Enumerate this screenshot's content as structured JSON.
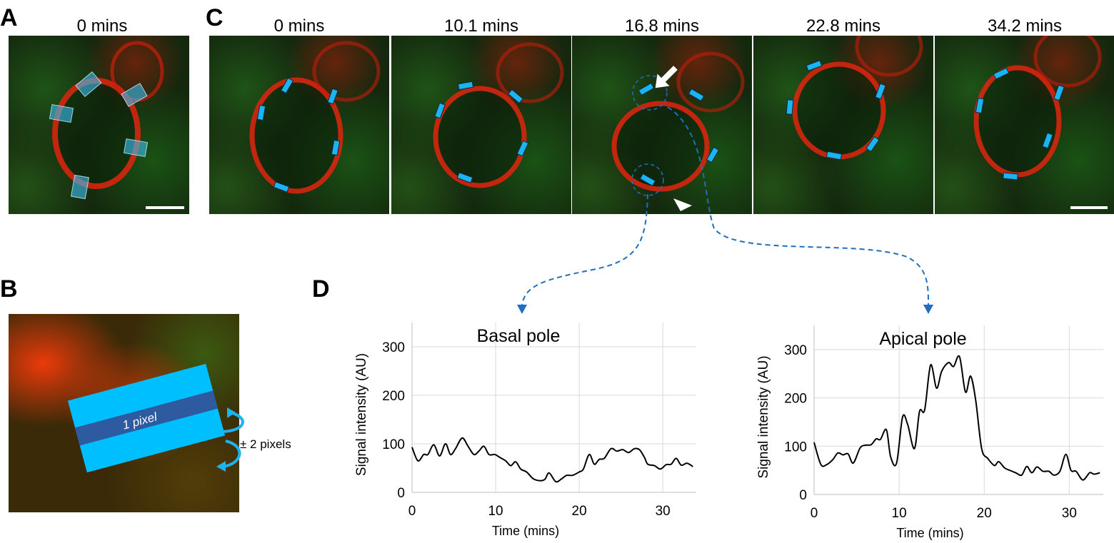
{
  "panel_labels": {
    "a": "A",
    "b": "B",
    "c": "C",
    "d": "D"
  },
  "panel_a": {
    "time": "0 mins"
  },
  "panel_b": {
    "band_label": "1 pixel",
    "width_label": "± 2 pixels"
  },
  "panel_c": {
    "times": [
      "0 mins",
      "10.1 mins",
      "16.8 mins",
      "22.8 mins",
      "34.2 mins"
    ]
  },
  "colors": {
    "roi": "#1cb4f0",
    "roi_dark": "#2e5aa0",
    "trace": "#000000",
    "grid": "#d9d9d9",
    "connector": "#1f6fc0",
    "membrane": "#e0240e"
  },
  "chart_data": [
    {
      "type": "line",
      "title": "Basal pole",
      "xlabel": "Time (mins)",
      "ylabel": "Signal intensity (AU)",
      "xlim": [
        0,
        34
      ],
      "ylim": [
        0,
        350
      ],
      "xticks": [
        "0",
        "10",
        "20",
        "30"
      ],
      "yticks": [
        "0",
        "100",
        "200",
        "300"
      ],
      "grid": true,
      "x": [
        0,
        0.7,
        1.4,
        1.9,
        2.6,
        3.3,
        4,
        4.6,
        5.2,
        6,
        6.7,
        7.4,
        8,
        8.6,
        9.2,
        9.9,
        10.5,
        11.2,
        11.8,
        12.4,
        13,
        13.7,
        14.5,
        15.3,
        15.9,
        16.4,
        17.2,
        17.9,
        18.5,
        19.2,
        20,
        20.5,
        21.2,
        21.8,
        22.4,
        23,
        23.8,
        24.5,
        25.2,
        25.9,
        26.6,
        27.2,
        27.8,
        28.2,
        29,
        29.7,
        30.4,
        31,
        31.6,
        32.2,
        32.9,
        33.6
      ],
      "y": [
        93,
        65,
        78,
        78,
        98,
        75,
        100,
        78,
        90,
        112,
        95,
        78,
        85,
        95,
        78,
        78,
        72,
        65,
        55,
        63,
        48,
        42,
        28,
        24,
        27,
        40,
        22,
        28,
        35,
        35,
        42,
        48,
        78,
        58,
        68,
        70,
        90,
        85,
        88,
        82,
        90,
        88,
        72,
        58,
        55,
        48,
        57,
        58,
        70,
        56,
        60,
        53
      ]
    },
    {
      "type": "line",
      "title": "Apical pole",
      "xlabel": "Time (mins)",
      "ylabel": "Signal intensity (AU)",
      "xlim": [
        0,
        34
      ],
      "ylim": [
        0,
        350
      ],
      "xticks": [
        "0",
        "10",
        "20",
        "30"
      ],
      "yticks": [
        "0",
        "100",
        "200",
        "300"
      ],
      "grid": true,
      "x": [
        0,
        0.8,
        1.5,
        2.2,
        2.8,
        3.4,
        4,
        4.6,
        5.4,
        6,
        6.7,
        7.3,
        7.8,
        8.5,
        9,
        9.7,
        10.4,
        11,
        11.8,
        12.4,
        13,
        13.7,
        14.4,
        15,
        15.8,
        16.4,
        17.1,
        17.8,
        18.4,
        19,
        19.7,
        20.4,
        21.2,
        21.7,
        22.4,
        23,
        23.7,
        24.4,
        25,
        25.6,
        26.2,
        26.9,
        27.6,
        28.2,
        28.9,
        29.6,
        30.2,
        30.8,
        31.6,
        32.4,
        32.9,
        33.6
      ],
      "y": [
        108,
        62,
        62,
        72,
        86,
        82,
        84,
        65,
        96,
        102,
        103,
        115,
        114,
        134,
        78,
        65,
        160,
        145,
        95,
        172,
        175,
        268,
        220,
        255,
        273,
        265,
        285,
        212,
        245,
        195,
        95,
        75,
        60,
        68,
        55,
        50,
        45,
        40,
        58,
        45,
        57,
        48,
        48,
        40,
        48,
        83,
        50,
        48,
        30,
        45,
        42,
        45
      ]
    }
  ]
}
